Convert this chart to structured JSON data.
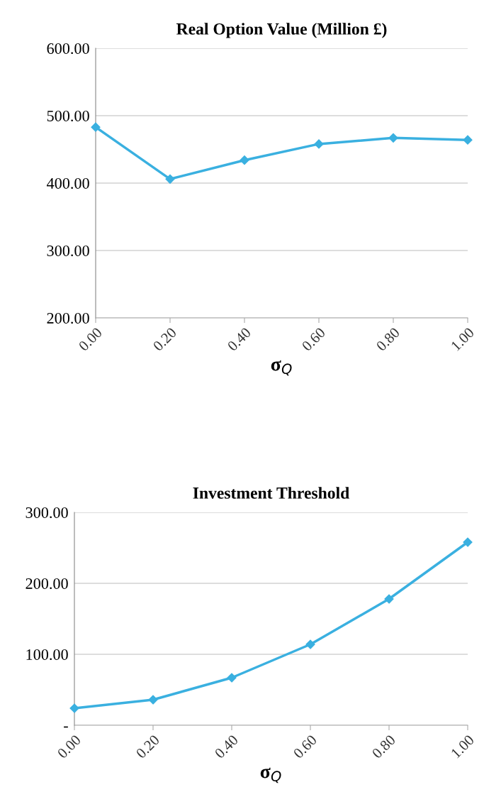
{
  "chart_data": [
    {
      "type": "line",
      "title": "Real Option Value (Million £)",
      "xlabel": "σ$_{Q}$",
      "x": [
        0,
        0.2,
        0.4,
        0.6,
        0.8,
        1.0
      ],
      "series": [
        {
          "color": "#3ab0e0",
          "values": [
            483,
            406,
            434,
            458,
            467,
            464
          ]
        }
      ],
      "xlim": [
        0,
        1
      ],
      "xticks": [
        {
          "value": 0,
          "label": "0.00"
        },
        {
          "value": 0.2,
          "label": "0.20"
        },
        {
          "value": 0.4,
          "label": "0.40"
        },
        {
          "value": 0.6,
          "label": "0.60"
        },
        {
          "value": 0.8,
          "label": "0.80"
        },
        {
          "value": 1.0,
          "label": "1.00"
        }
      ],
      "ylim": [
        200,
        600
      ],
      "yticks": [
        {
          "value": 200,
          "label": "200.00"
        },
        {
          "value": 300,
          "label": "300.00"
        },
        {
          "value": 400,
          "label": "400.00"
        },
        {
          "value": 500,
          "label": "500.00"
        },
        {
          "value": 600,
          "label": "600.00"
        }
      ],
      "grid": "y",
      "legend": false,
      "marker": "diamond",
      "line_style": "solid"
    },
    {
      "type": "line",
      "title": "Investment Threshold",
      "xlabel": "σ$_{Q}$",
      "x": [
        0,
        0.2,
        0.4,
        0.6,
        0.8,
        1.0
      ],
      "series": [
        {
          "color": "#3ab0e0",
          "values": [
            24,
            36,
            67,
            114,
            178,
            258
          ]
        }
      ],
      "xlim": [
        0,
        1
      ],
      "xticks": [
        {
          "value": 0,
          "label": "0.00"
        },
        {
          "value": 0.2,
          "label": "0.20"
        },
        {
          "value": 0.4,
          "label": "0.40"
        },
        {
          "value": 0.6,
          "label": "0.60"
        },
        {
          "value": 0.8,
          "label": "0.80"
        },
        {
          "value": 1.0,
          "label": "1.00"
        }
      ],
      "ylim": [
        0,
        300
      ],
      "yticks": [
        {
          "value": 0,
          "label": "-"
        },
        {
          "value": 100,
          "label": "100.00"
        },
        {
          "value": 200,
          "label": "200.00"
        },
        {
          "value": 300,
          "label": "300.00"
        }
      ],
      "grid": "y",
      "legend": false,
      "marker": "diamond",
      "line_style": "solid"
    }
  ]
}
